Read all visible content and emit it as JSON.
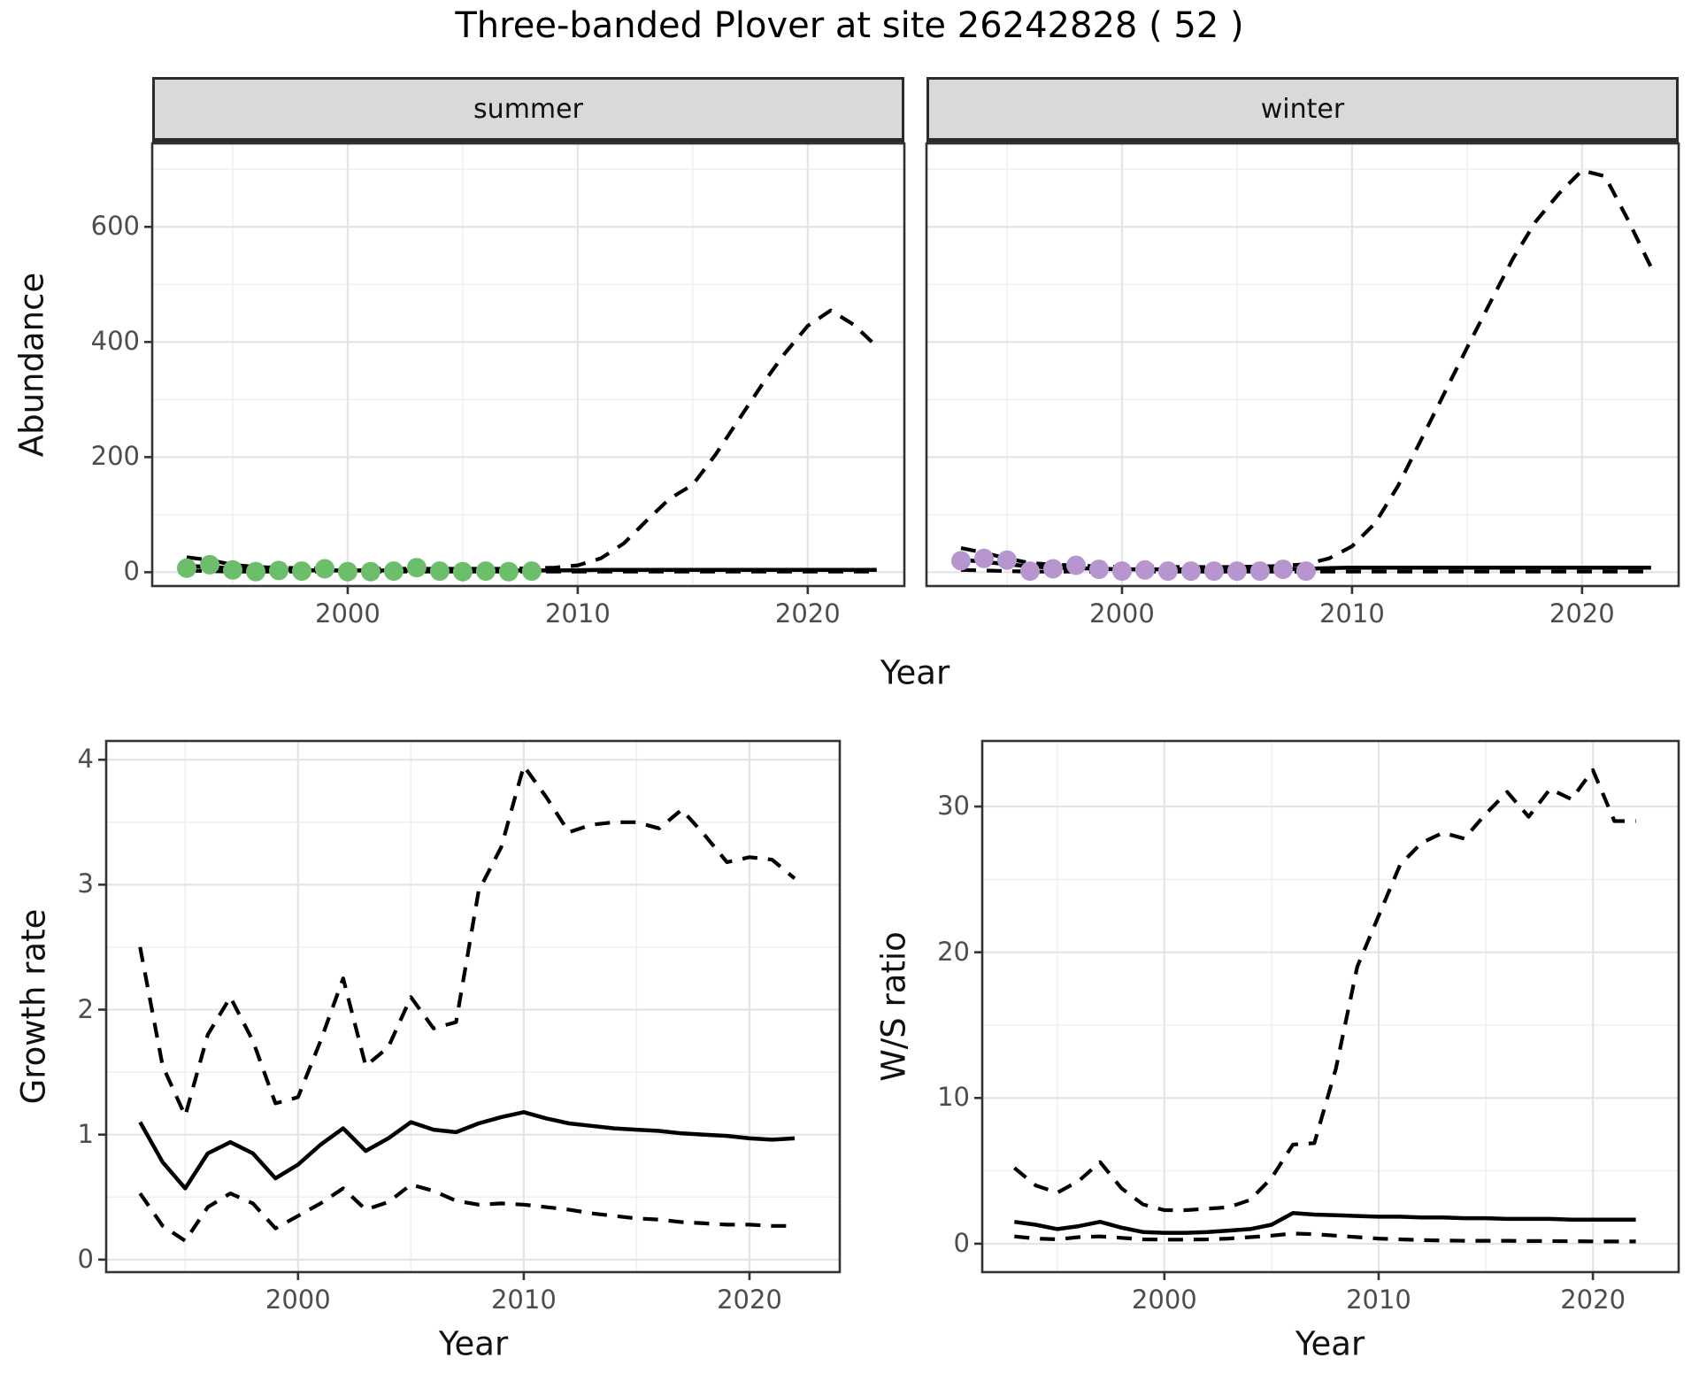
{
  "title": "Three-banded Plover at site 26242828 ( 52 )",
  "colors": {
    "summer_point": "#6dbe6b",
    "winter_point": "#b795ce",
    "line": "#000000",
    "strip_background": "#d9d9d9",
    "strip_border": "#2b2b2b",
    "panel_border": "#333333",
    "panel_background": "#ffffff",
    "grid_major": "#e4e4e4",
    "grid_minor": "#efefef",
    "tick_text": "#4d4d4d",
    "text": "#111111"
  },
  "chart_data": [
    {
      "id": "abundance_summer",
      "type": "line",
      "facet": "summer",
      "ylabel": "Abundance",
      "xlabel": "Year",
      "xlim": [
        1991.5,
        2024.2
      ],
      "ylim": [
        -24,
        745
      ],
      "xticks": [
        2000,
        2010,
        2020
      ],
      "xminor": [
        1995,
        2005,
        2015
      ],
      "yticks": [
        0,
        200,
        400,
        600
      ],
      "yminor": [
        100,
        300,
        500,
        700
      ],
      "show_y_labels": true,
      "years": [
        1993,
        1994,
        1995,
        1996,
        1997,
        1998,
        1999,
        2000,
        2001,
        2002,
        2003,
        2004,
        2005,
        2006,
        2007,
        2008,
        2009,
        2010,
        2011,
        2012,
        2013,
        2014,
        2015,
        2016,
        2017,
        2018,
        2019,
        2020,
        2021,
        2022,
        2023
      ],
      "series": [
        {
          "name": "upper_ci",
          "style": "dashed",
          "values": [
            26,
            21,
            13,
            9,
            8,
            7,
            6,
            6,
            6,
            6,
            6,
            6,
            6,
            6,
            6,
            7,
            8,
            12,
            24,
            50,
            90,
            128,
            152,
            205,
            265,
            325,
            380,
            428,
            455,
            430,
            392
          ]
        },
        {
          "name": "fit",
          "style": "solid",
          "values": [
            11,
            9,
            7,
            5,
            4,
            3.5,
            3,
            3,
            3,
            3,
            3,
            3,
            3,
            3,
            3,
            3,
            3,
            3.5,
            4,
            4,
            4,
            4,
            4,
            4,
            4,
            4,
            4,
            4,
            4,
            4,
            4
          ]
        },
        {
          "name": "lower_ci",
          "style": "dashed",
          "values": [
            3,
            2,
            1,
            1,
            1,
            1,
            1,
            1,
            1,
            1,
            1,
            1,
            1,
            1,
            1,
            1,
            1,
            1,
            1,
            1,
            1,
            1,
            1,
            1,
            1,
            1,
            1,
            1,
            1,
            1,
            1
          ]
        }
      ],
      "points": {
        "name": "observed",
        "color_key": "summer_point",
        "x": [
          1993,
          1994,
          1995,
          1996,
          1997,
          1998,
          1999,
          2000,
          2001,
          2002,
          2003,
          2004,
          2005,
          2006,
          2007,
          2008
        ],
        "y": [
          7,
          13,
          4,
          1,
          3,
          2,
          6,
          1,
          1,
          2,
          8,
          2,
          1,
          2,
          1,
          2
        ]
      }
    },
    {
      "id": "abundance_winter",
      "type": "line",
      "facet": "winter",
      "xlim": [
        1991.5,
        2024.2
      ],
      "ylim": [
        -24,
        745
      ],
      "xticks": [
        2000,
        2010,
        2020
      ],
      "xminor": [
        1995,
        2005,
        2015
      ],
      "yticks": [
        0,
        200,
        400,
        600
      ],
      "yminor": [
        100,
        300,
        500,
        700
      ],
      "show_y_labels": false,
      "years": [
        1993,
        1994,
        1995,
        1996,
        1997,
        1998,
        1999,
        2000,
        2001,
        2002,
        2003,
        2004,
        2005,
        2006,
        2007,
        2008,
        2009,
        2010,
        2011,
        2012,
        2013,
        2014,
        2015,
        2016,
        2017,
        2018,
        2019,
        2020,
        2021,
        2022,
        2023
      ],
      "series": [
        {
          "name": "upper_ci",
          "style": "dashed",
          "values": [
            42,
            34,
            24,
            16,
            13,
            12,
            10,
            9,
            9,
            9,
            9,
            9,
            9,
            10,
            11,
            14,
            24,
            45,
            85,
            150,
            230,
            310,
            390,
            468,
            545,
            610,
            658,
            698,
            688,
            612,
            530
          ]
        },
        {
          "name": "fit",
          "style": "solid",
          "values": [
            22,
            18,
            14,
            10,
            8,
            7,
            6,
            5,
            5,
            5,
            5,
            5,
            5,
            5,
            5,
            6,
            7,
            8,
            8,
            8,
            8,
            8,
            8,
            8,
            8,
            8,
            8,
            8,
            8,
            8,
            8
          ]
        },
        {
          "name": "lower_ci",
          "style": "dashed",
          "values": [
            4,
            3,
            2,
            1,
            1,
            1,
            1,
            1,
            1,
            1,
            1,
            1,
            1,
            1,
            1,
            1,
            1,
            1,
            1,
            1,
            1,
            1,
            1,
            1,
            1,
            1,
            1,
            1,
            1,
            1,
            1
          ]
        }
      ],
      "points": {
        "name": "observed",
        "color_key": "winter_point",
        "x": [
          1993,
          1994,
          1995,
          1996,
          1997,
          1998,
          1999,
          2000,
          2001,
          2002,
          2003,
          2004,
          2005,
          2006,
          2007,
          2008
        ],
        "y": [
          20,
          24,
          21,
          2,
          6,
          12,
          5,
          2,
          4,
          2,
          2,
          2,
          2,
          2,
          5,
          2
        ]
      }
    },
    {
      "id": "growth_rate",
      "type": "line",
      "ylabel": "Growth rate",
      "xlabel": "Year",
      "xlim": [
        1991.5,
        2024.0
      ],
      "ylim": [
        -0.1,
        4.15
      ],
      "xticks": [
        2000,
        2010,
        2020
      ],
      "xminor": [
        1995,
        2005,
        2015
      ],
      "yticks": [
        0,
        1,
        2,
        3,
        4
      ],
      "yminor": [
        0.5,
        1.5,
        2.5,
        3.5
      ],
      "show_y_labels": true,
      "years": [
        1993,
        1994,
        1995,
        1996,
        1997,
        1998,
        1999,
        2000,
        2001,
        2002,
        2003,
        2004,
        2005,
        2006,
        2007,
        2008,
        2009,
        2010,
        2011,
        2012,
        2013,
        2014,
        2015,
        2016,
        2017,
        2018,
        2019,
        2020,
        2021,
        2022
      ],
      "series": [
        {
          "name": "upper_ci",
          "style": "dashed",
          "values": [
            2.5,
            1.55,
            1.15,
            1.8,
            2.1,
            1.75,
            1.25,
            1.3,
            1.75,
            2.25,
            1.55,
            1.7,
            2.1,
            1.85,
            1.9,
            2.95,
            3.3,
            3.95,
            3.7,
            3.42,
            3.48,
            3.5,
            3.5,
            3.45,
            3.6,
            3.4,
            3.18,
            3.22,
            3.2,
            3.05
          ]
        },
        {
          "name": "fit",
          "style": "solid",
          "values": [
            1.1,
            0.78,
            0.57,
            0.85,
            0.94,
            0.85,
            0.65,
            0.76,
            0.92,
            1.05,
            0.87,
            0.97,
            1.1,
            1.04,
            1.02,
            1.09,
            1.14,
            1.18,
            1.13,
            1.09,
            1.07,
            1.05,
            1.04,
            1.03,
            1.01,
            1.0,
            0.99,
            0.97,
            0.96,
            0.97
          ]
        },
        {
          "name": "lower_ci",
          "style": "dashed",
          "values": [
            0.53,
            0.27,
            0.15,
            0.42,
            0.53,
            0.45,
            0.25,
            0.35,
            0.45,
            0.57,
            0.4,
            0.46,
            0.6,
            0.55,
            0.47,
            0.44,
            0.45,
            0.44,
            0.42,
            0.4,
            0.37,
            0.35,
            0.33,
            0.32,
            0.3,
            0.29,
            0.28,
            0.28,
            0.27,
            0.27
          ]
        }
      ]
    },
    {
      "id": "ws_ratio",
      "type": "line",
      "ylabel": "W/S ratio",
      "xlabel": "Year",
      "xlim": [
        1991.5,
        2024.0
      ],
      "ylim": [
        -1.95,
        34.5
      ],
      "xticks": [
        2000,
        2010,
        2020
      ],
      "xminor": [
        1995,
        2005,
        2015
      ],
      "yticks": [
        0,
        10,
        20,
        30
      ],
      "yminor": [
        5,
        15,
        25
      ],
      "show_y_labels": true,
      "years": [
        1993,
        1994,
        1995,
        1996,
        1997,
        1998,
        1999,
        2000,
        2001,
        2002,
        2003,
        2004,
        2005,
        2006,
        2007,
        2008,
        2009,
        2010,
        2011,
        2012,
        2013,
        2014,
        2015,
        2016,
        2017,
        2018,
        2019,
        2020,
        2021,
        2022
      ],
      "series": [
        {
          "name": "upper_ci",
          "style": "dashed",
          "values": [
            5.2,
            4.0,
            3.5,
            4.3,
            5.6,
            3.8,
            2.7,
            2.3,
            2.3,
            2.4,
            2.5,
            3.0,
            4.5,
            6.8,
            6.9,
            12.0,
            19.0,
            22.5,
            26.0,
            27.5,
            28.2,
            27.8,
            29.5,
            31.0,
            29.3,
            31.2,
            30.5,
            32.5,
            29.0,
            29.0
          ]
        },
        {
          "name": "fit",
          "style": "solid",
          "values": [
            1.5,
            1.3,
            1.0,
            1.2,
            1.5,
            1.1,
            0.8,
            0.75,
            0.75,
            0.8,
            0.9,
            1.0,
            1.3,
            2.1,
            2.0,
            1.95,
            1.9,
            1.85,
            1.85,
            1.8,
            1.8,
            1.75,
            1.75,
            1.7,
            1.7,
            1.7,
            1.65,
            1.65,
            1.65,
            1.65
          ]
        },
        {
          "name": "lower_ci",
          "style": "dashed",
          "values": [
            0.5,
            0.35,
            0.3,
            0.45,
            0.5,
            0.4,
            0.3,
            0.28,
            0.28,
            0.3,
            0.35,
            0.45,
            0.55,
            0.7,
            0.65,
            0.55,
            0.45,
            0.35,
            0.3,
            0.25,
            0.22,
            0.2,
            0.2,
            0.2,
            0.18,
            0.18,
            0.17,
            0.16,
            0.15,
            0.15
          ]
        }
      ]
    }
  ]
}
